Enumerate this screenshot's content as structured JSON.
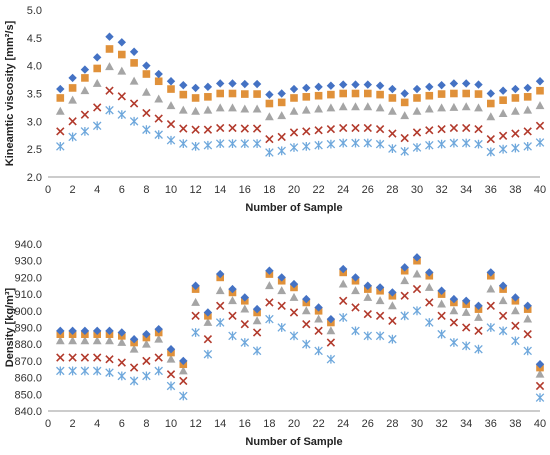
{
  "chart_data": [
    {
      "type": "scatter",
      "title": "",
      "xlabel": "Number of Sample",
      "ylabel": "Kineamtic viscosity [mm²/s]",
      "xlim": [
        0,
        40
      ],
      "ylim": [
        2.0,
        5.0
      ],
      "xticks": [
        0,
        2,
        4,
        6,
        8,
        10,
        12,
        14,
        16,
        18,
        20,
        22,
        24,
        26,
        28,
        30,
        32,
        34,
        36,
        38,
        40
      ],
      "yticks": [
        2.0,
        2.5,
        3.0,
        3.5,
        4.0,
        4.5,
        5.0
      ],
      "ytick_decimals": 1,
      "grid": false,
      "legend": "none",
      "x": [
        1,
        2,
        3,
        4,
        5,
        6,
        7,
        8,
        9,
        10,
        11,
        12,
        13,
        14,
        15,
        16,
        17,
        18,
        19,
        20,
        21,
        22,
        23,
        24,
        25,
        26,
        27,
        28,
        29,
        30,
        31,
        32,
        33,
        34,
        35,
        36,
        37,
        38,
        39,
        40
      ],
      "series": [
        {
          "marker": "diamond",
          "color": "#4472C4",
          "values": [
            3.58,
            3.78,
            3.93,
            4.15,
            4.52,
            4.42,
            4.25,
            4.0,
            3.85,
            3.72,
            3.65,
            3.6,
            3.62,
            3.68,
            3.68,
            3.67,
            3.67,
            3.48,
            3.5,
            3.58,
            3.6,
            3.62,
            3.64,
            3.66,
            3.66,
            3.66,
            3.64,
            3.58,
            3.5,
            3.58,
            3.62,
            3.65,
            3.68,
            3.68,
            3.66,
            3.5,
            3.55,
            3.58,
            3.6,
            3.72
          ]
        },
        {
          "marker": "square",
          "color": "#E0913A",
          "values": [
            3.42,
            3.6,
            3.78,
            3.95,
            4.3,
            4.2,
            4.05,
            3.85,
            3.72,
            3.58,
            3.48,
            3.42,
            3.44,
            3.5,
            3.5,
            3.49,
            3.49,
            3.32,
            3.34,
            3.42,
            3.44,
            3.46,
            3.48,
            3.5,
            3.5,
            3.5,
            3.48,
            3.42,
            3.34,
            3.42,
            3.46,
            3.49,
            3.5,
            3.5,
            3.49,
            3.32,
            3.38,
            3.42,
            3.44,
            3.55
          ]
        },
        {
          "marker": "triangle",
          "color": "#A5A5A5",
          "values": [
            3.18,
            3.38,
            3.55,
            3.68,
            3.98,
            3.9,
            3.72,
            3.52,
            3.4,
            3.28,
            3.2,
            3.18,
            3.2,
            3.24,
            3.24,
            3.22,
            3.22,
            3.08,
            3.1,
            3.18,
            3.2,
            3.22,
            3.24,
            3.26,
            3.26,
            3.26,
            3.24,
            3.18,
            3.1,
            3.18,
            3.22,
            3.24,
            3.25,
            3.26,
            3.24,
            3.08,
            3.14,
            3.18,
            3.2,
            3.28
          ]
        },
        {
          "marker": "x",
          "color": "#B23A2C",
          "values": [
            2.82,
            3.0,
            3.12,
            3.25,
            3.55,
            3.45,
            3.32,
            3.15,
            3.05,
            2.95,
            2.87,
            2.85,
            2.85,
            2.88,
            2.88,
            2.87,
            2.87,
            2.68,
            2.72,
            2.8,
            2.82,
            2.84,
            2.86,
            2.88,
            2.88,
            2.88,
            2.86,
            2.78,
            2.7,
            2.8,
            2.84,
            2.86,
            2.88,
            2.88,
            2.86,
            2.68,
            2.74,
            2.78,
            2.82,
            2.92
          ]
        },
        {
          "marker": "asterisk",
          "color": "#6FA8DC",
          "values": [
            2.55,
            2.72,
            2.82,
            2.92,
            3.2,
            3.12,
            3.0,
            2.85,
            2.76,
            2.66,
            2.6,
            2.55,
            2.57,
            2.6,
            2.6,
            2.6,
            2.6,
            2.44,
            2.47,
            2.53,
            2.55,
            2.57,
            2.59,
            2.61,
            2.61,
            2.61,
            2.59,
            2.51,
            2.46,
            2.53,
            2.57,
            2.59,
            2.61,
            2.61,
            2.59,
            2.45,
            2.5,
            2.52,
            2.55,
            2.62
          ]
        }
      ]
    },
    {
      "type": "scatter",
      "title": "",
      "xlabel": "Number of Sample",
      "ylabel": "Density [kg/m³]",
      "xlim": [
        0,
        40
      ],
      "ylim": [
        840.0,
        940.0
      ],
      "xticks": [
        0,
        2,
        4,
        6,
        8,
        10,
        12,
        14,
        16,
        18,
        20,
        22,
        24,
        26,
        28,
        30,
        32,
        34,
        36,
        38,
        40
      ],
      "yticks": [
        840.0,
        850.0,
        860.0,
        870.0,
        880.0,
        890.0,
        900.0,
        910.0,
        920.0,
        930.0,
        940.0
      ],
      "ytick_decimals": 1,
      "grid": false,
      "legend": "none",
      "x": [
        1,
        2,
        3,
        4,
        5,
        6,
        7,
        8,
        9,
        10,
        11,
        12,
        13,
        14,
        15,
        16,
        17,
        18,
        19,
        20,
        21,
        22,
        23,
        24,
        25,
        26,
        27,
        28,
        29,
        30,
        31,
        32,
        33,
        34,
        35,
        36,
        37,
        38,
        39,
        40
      ],
      "series": [
        {
          "marker": "diamond",
          "color": "#4472C4",
          "values": [
            888,
            888,
            888,
            888,
            888,
            887,
            883,
            886,
            889,
            877,
            870,
            915,
            899,
            922,
            913,
            908,
            901,
            924,
            920,
            916,
            907,
            902,
            895,
            925,
            920,
            915,
            914,
            911,
            926,
            932,
            923,
            912,
            907,
            906,
            903,
            923,
            915,
            908,
            903,
            868
          ]
        },
        {
          "marker": "square",
          "color": "#E0913A",
          "values": [
            886,
            886,
            886,
            886,
            886,
            885,
            881,
            884,
            887,
            875,
            868,
            913,
            897,
            920,
            911,
            906,
            899,
            922,
            918,
            914,
            905,
            900,
            893,
            923,
            918,
            913,
            912,
            909,
            924,
            930,
            921,
            910,
            905,
            904,
            901,
            921,
            913,
            906,
            901,
            866
          ]
        },
        {
          "marker": "triangle",
          "color": "#A5A5A5",
          "values": [
            882,
            882,
            882,
            882,
            882,
            881,
            877,
            880,
            883,
            871,
            864,
            905,
            893,
            912,
            906,
            901,
            894,
            915,
            912,
            908,
            900,
            895,
            888,
            916,
            912,
            908,
            906,
            903,
            918,
            922,
            914,
            904,
            900,
            899,
            896,
            913,
            906,
            900,
            895,
            862
          ]
        },
        {
          "marker": "x",
          "color": "#B23A2C",
          "values": [
            872,
            872,
            872,
            872,
            871,
            869,
            866,
            870,
            872,
            862,
            858,
            897,
            883,
            903,
            897,
            892,
            887,
            905,
            903,
            899,
            892,
            888,
            881,
            906,
            902,
            898,
            897,
            894,
            909,
            913,
            905,
            897,
            893,
            890,
            888,
            903,
            897,
            891,
            886,
            855
          ]
        },
        {
          "marker": "asterisk",
          "color": "#6FA8DC",
          "values": [
            864,
            864,
            864,
            864,
            863,
            861,
            858,
            861,
            864,
            855,
            849,
            887,
            874,
            893,
            885,
            881,
            876,
            895,
            890,
            885,
            880,
            876,
            871,
            896,
            888,
            885,
            885,
            883,
            897,
            900,
            893,
            886,
            881,
            879,
            877,
            890,
            888,
            882,
            876,
            848
          ]
        }
      ]
    }
  ]
}
